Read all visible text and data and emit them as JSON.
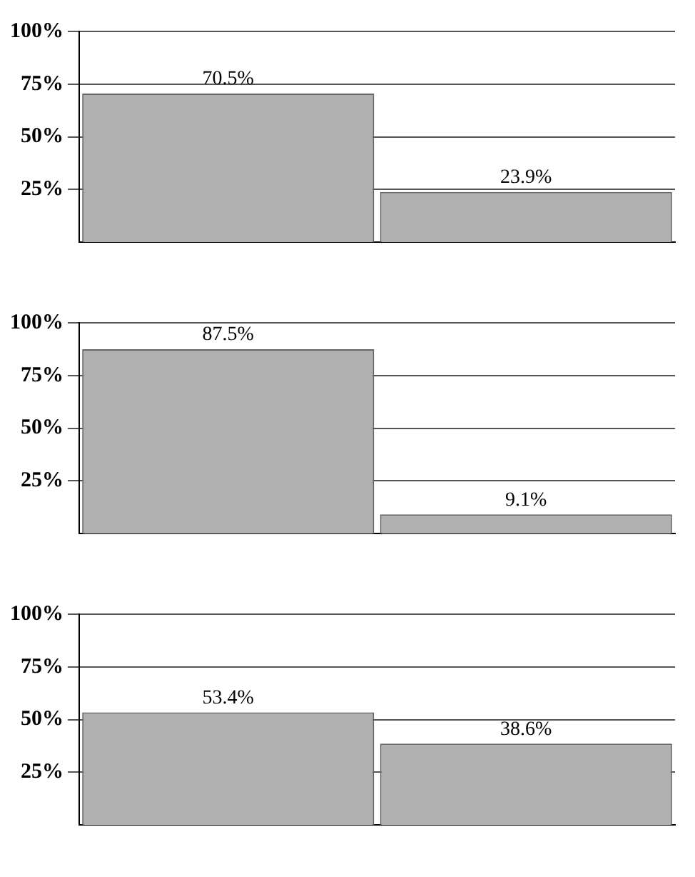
{
  "chart_data": [
    {
      "type": "bar",
      "categories": [
        null,
        null
      ],
      "values": [
        70.5,
        23.9
      ],
      "value_labels": [
        "70.5%",
        "23.9%"
      ],
      "color": "#b0b0b0",
      "ylim": [
        0,
        100
      ],
      "yticks": [
        {
          "value": 25,
          "label": "25%"
        },
        {
          "value": 50,
          "label": "50%"
        },
        {
          "value": 75,
          "label": "75%"
        },
        {
          "value": 100,
          "label": "100%"
        }
      ],
      "grid": "y",
      "legend": false
    },
    {
      "type": "bar",
      "categories": [
        null,
        null
      ],
      "values": [
        87.5,
        9.1
      ],
      "value_labels": [
        "87.5%",
        "9.1%"
      ],
      "color": "#b0b0b0",
      "ylim": [
        0,
        100
      ],
      "yticks": [
        {
          "value": 25,
          "label": "25%"
        },
        {
          "value": 50,
          "label": "50%"
        },
        {
          "value": 75,
          "label": "75%"
        },
        {
          "value": 100,
          "label": "100%"
        }
      ],
      "grid": "y",
      "legend": false
    },
    {
      "type": "bar",
      "categories": [
        null,
        null
      ],
      "values": [
        53.4,
        38.6
      ],
      "value_labels": [
        "53.4%",
        "38.6%"
      ],
      "color": "#b0b0b0",
      "ylim": [
        0,
        100
      ],
      "yticks": [
        {
          "value": 25,
          "label": "25%"
        },
        {
          "value": 50,
          "label": "50%"
        },
        {
          "value": 75,
          "label": "75%"
        },
        {
          "value": 100,
          "label": "100%"
        }
      ],
      "grid": "y",
      "legend": false
    }
  ]
}
